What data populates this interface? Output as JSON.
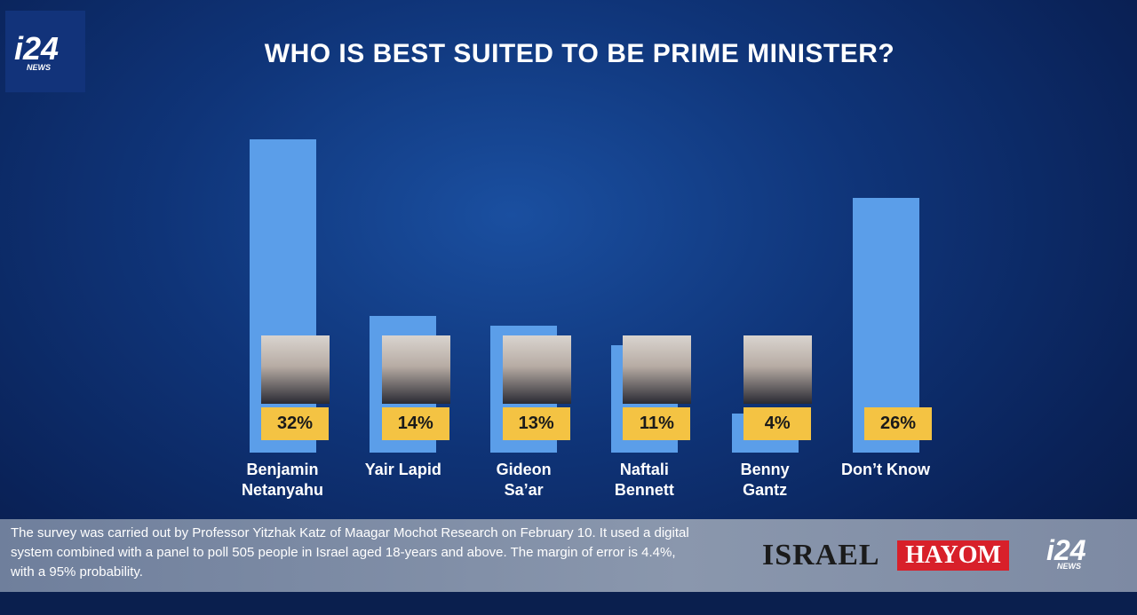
{
  "chart_data": {
    "type": "bar",
    "title": "WHO IS BEST SUITED TO BE PRIME MINISTER?",
    "categories": [
      "Benjamin\nNetanyahu",
      "Yair Lapid",
      "Gideon\nSa’ar",
      "Naftali\nBennett",
      "Benny\nGantz",
      "Don’t Know"
    ],
    "values": [
      32,
      14,
      13,
      11,
      4,
      26
    ],
    "value_labels": [
      "32%",
      "14%",
      "13%",
      "11%",
      "4%",
      "26%"
    ],
    "color": "#5b9ee9",
    "label_color": "#f4c343"
  },
  "footnote": [
    "The survey was carried out by Professor Yitzhak Katz of Maagar Mochot Research on February 10. It used a digital",
    "system combined with a panel to poll 505 people in Israel aged 18-years and above. The margin of error is 4.4%,",
    "with a 95% probability."
  ],
  "logos": {
    "channel": "i24",
    "channel_sub": "NEWS",
    "paper_1": "ISRAEL",
    "paper_2": "HAYOM"
  }
}
